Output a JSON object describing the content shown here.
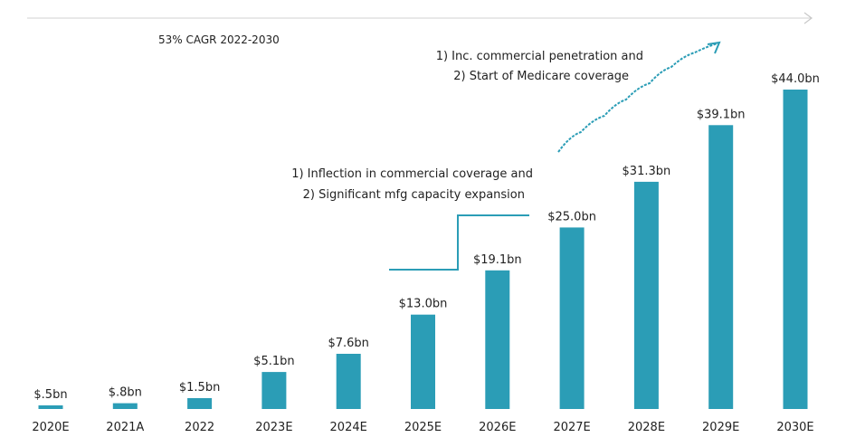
{
  "chart_data": {
    "type": "bar",
    "title": "",
    "xlabel": "",
    "ylabel": "",
    "categories": [
      "2020E",
      "2021A",
      "2022",
      "2023E",
      "2024E",
      "2025E",
      "2026E",
      "2027E",
      "2028E",
      "2029E",
      "2030E"
    ],
    "values": [
      0.5,
      0.8,
      1.5,
      5.1,
      7.6,
      13.0,
      19.1,
      25.0,
      31.3,
      39.1,
      44.0
    ],
    "value_labels": [
      "$.5bn",
      "$.8bn",
      "$1.5bn",
      "$5.1bn",
      "$7.6bn",
      "$13.0bn",
      "$19.1bn",
      "$25.0bn",
      "$31.3bn",
      "$39.1bn",
      "$44.0bn"
    ],
    "ylim": [
      0,
      44.0
    ],
    "grid": false,
    "bar_color": "#2b9db6",
    "annotation_color": "#2b9db6",
    "annotations": {
      "cagr": "53% CAGR 2022-2030",
      "phase1": [
        "1) Inflection in commercial coverage and",
        "2) Significant mfg capacity expansion"
      ],
      "phase2": [
        "1) Inc. commercial penetration and",
        "2) Start of Medicare coverage"
      ]
    }
  }
}
